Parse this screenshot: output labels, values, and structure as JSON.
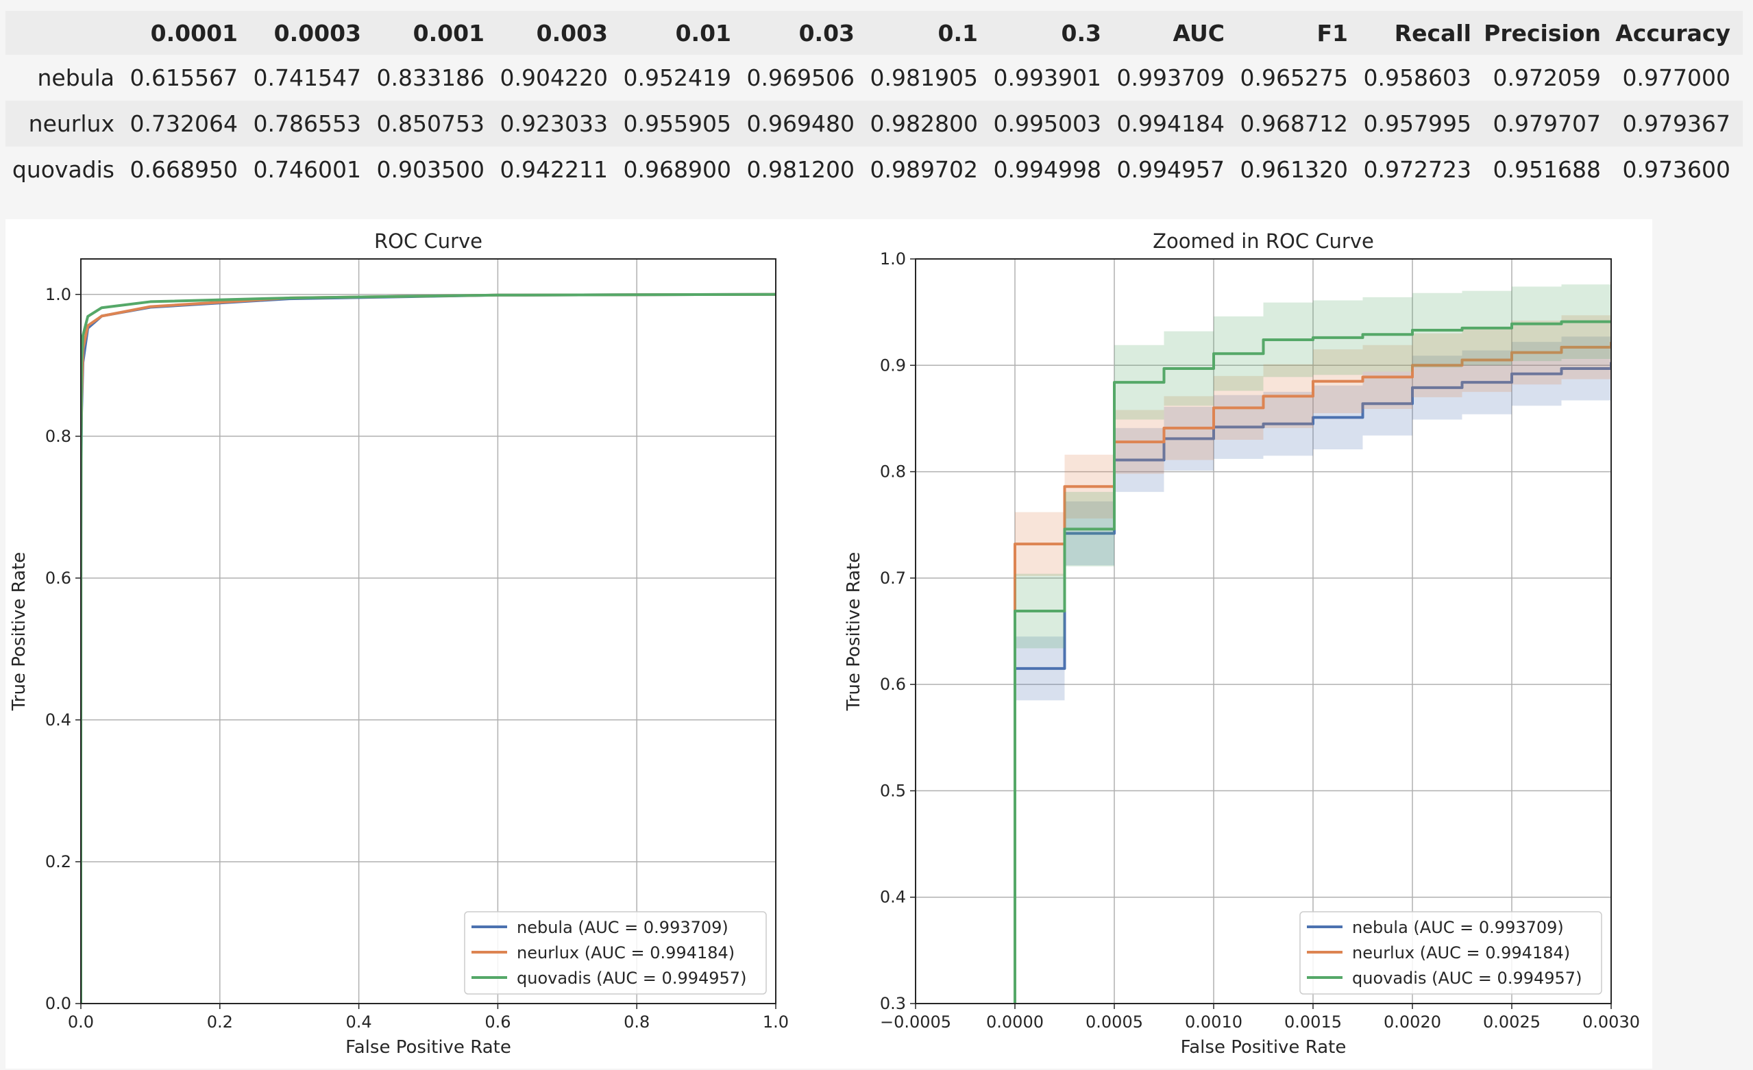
{
  "table": {
    "columns": [
      "",
      "0.0001",
      "0.0003",
      "0.001",
      "0.003",
      "0.01",
      "0.03",
      "0.1",
      "0.3",
      "AUC",
      "F1",
      "Recall",
      "Precision",
      "Accuracy"
    ],
    "rows": [
      {
        "name": "nebula",
        "cells": [
          "0.615567",
          "0.741547",
          "0.833186",
          "0.904220",
          "0.952419",
          "0.969506",
          "0.981905",
          "0.993901",
          "0.993709",
          "0.965275",
          "0.958603",
          "0.972059",
          "0.977000"
        ]
      },
      {
        "name": "neurlux",
        "cells": [
          "0.732064",
          "0.786553",
          "0.850753",
          "0.923033",
          "0.955905",
          "0.969480",
          "0.982800",
          "0.995003",
          "0.994184",
          "0.968712",
          "0.957995",
          "0.979707",
          "0.979367"
        ]
      },
      {
        "name": "quovadis",
        "cells": [
          "0.668950",
          "0.746001",
          "0.903500",
          "0.942211",
          "0.968900",
          "0.981200",
          "0.989702",
          "0.994998",
          "0.994957",
          "0.961320",
          "0.972723",
          "0.951688",
          "0.973600"
        ]
      }
    ]
  },
  "chart_data": [
    {
      "type": "line",
      "title": "ROC Curve",
      "xlabel": "False Positive Rate",
      "ylabel": "True Positive Rate",
      "xlim": [
        0.0,
        1.0
      ],
      "ylim": [
        0.0,
        1.05
      ],
      "xticks": [
        "0.0",
        "0.2",
        "0.4",
        "0.6",
        "0.8",
        "1.0"
      ],
      "yticks": [
        "0.0",
        "0.2",
        "0.4",
        "0.6",
        "0.8",
        "1.0"
      ],
      "grid": true,
      "legend": "lower-right",
      "series": [
        {
          "name": "nebula (AUC = 0.993709)",
          "color": "#4c72b0",
          "x": [
            0,
            0,
            0.0001,
            0.0003,
            0.001,
            0.003,
            0.01,
            0.03,
            0.1,
            0.3,
            0.6,
            1.0
          ],
          "y": [
            0,
            0.3,
            0.615567,
            0.741547,
            0.833186,
            0.90422,
            0.952419,
            0.969506,
            0.981905,
            0.993901,
            0.999,
            1.0
          ]
        },
        {
          "name": "neurlux (AUC = 0.994184)",
          "color": "#dd8452",
          "x": [
            0,
            0,
            0.0001,
            0.0003,
            0.001,
            0.003,
            0.01,
            0.03,
            0.1,
            0.3,
            0.6,
            1.0
          ],
          "y": [
            0,
            0.3,
            0.732064,
            0.786553,
            0.850753,
            0.923033,
            0.955905,
            0.96948,
            0.9828,
            0.995003,
            0.999,
            1.0
          ]
        },
        {
          "name": "quovadis (AUC = 0.994957)",
          "color": "#55a868",
          "x": [
            0,
            0,
            0.0001,
            0.0003,
            0.001,
            0.003,
            0.01,
            0.03,
            0.1,
            0.3,
            0.6,
            1.0
          ],
          "y": [
            0,
            0.3,
            0.66895,
            0.746001,
            0.9035,
            0.942211,
            0.9689,
            0.9812,
            0.989702,
            0.994998,
            0.999,
            1.0
          ]
        }
      ]
    },
    {
      "type": "line",
      "title": "Zoomed in ROC Curve",
      "xlabel": "False Positive Rate",
      "ylabel": "True Positive Rate",
      "xlim": [
        -0.0005,
        0.003
      ],
      "ylim": [
        0.3,
        1.0
      ],
      "xticks": [
        "−0.0005",
        "0.0000",
        "0.0005",
        "0.0010",
        "0.0015",
        "0.0020",
        "0.0025",
        "0.0030"
      ],
      "yticks": [
        "0.3",
        "0.4",
        "0.5",
        "0.6",
        "0.7",
        "0.8",
        "0.9",
        "1.0"
      ],
      "grid": true,
      "legend": "lower-right",
      "series": [
        {
          "name": "nebula (AUC = 0.993709)",
          "color": "#4c72b0",
          "x": [
            0,
            0,
            0.00025,
            0.0005,
            0.00075,
            0.001,
            0.00125,
            0.0015,
            0.00175,
            0.002,
            0.00225,
            0.0025,
            0.00275,
            0.003
          ],
          "y": [
            0.3,
            0.615,
            0.742,
            0.811,
            0.831,
            0.842,
            0.845,
            0.851,
            0.864,
            0.879,
            0.884,
            0.892,
            0.897,
            0.903
          ],
          "band": 0.03
        },
        {
          "name": "neurlux (AUC = 0.994184)",
          "color": "#dd8452",
          "x": [
            0,
            0,
            0.00025,
            0.0005,
            0.00075,
            0.001,
            0.00125,
            0.0015,
            0.00175,
            0.002,
            0.00225,
            0.0025,
            0.00275,
            0.003
          ],
          "y": [
            0.3,
            0.732,
            0.786,
            0.828,
            0.841,
            0.86,
            0.871,
            0.885,
            0.889,
            0.9,
            0.905,
            0.912,
            0.917,
            0.922
          ],
          "band": 0.03
        },
        {
          "name": "quovadis (AUC = 0.994957)",
          "color": "#55a868",
          "x": [
            0,
            0,
            0.00025,
            0.0005,
            0.00075,
            0.001,
            0.00125,
            0.0015,
            0.00175,
            0.002,
            0.00225,
            0.0025,
            0.00275,
            0.003
          ],
          "y": [
            0.3,
            0.669,
            0.746,
            0.884,
            0.897,
            0.911,
            0.924,
            0.926,
            0.929,
            0.933,
            0.935,
            0.939,
            0.941,
            0.942
          ],
          "band": 0.035
        }
      ]
    }
  ]
}
